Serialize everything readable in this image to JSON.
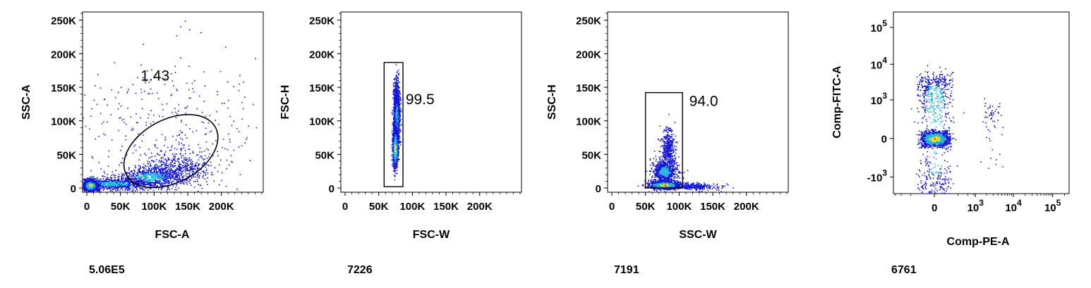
{
  "colors": {
    "low_density": "#1515d8",
    "mid_density": "#21b7e0",
    "high_density": "#f0e020",
    "peak_density": "#e03a1a",
    "axis": "#000000",
    "background": "#ffffff"
  },
  "chart_data": [
    {
      "type": "scatter",
      "subtype": "density-dot-plot",
      "xlabel": "FSC-A",
      "ylabel": "SSC-A",
      "xscale": "linear",
      "yscale": "linear",
      "xlim": [
        0,
        262144
      ],
      "ylim": [
        0,
        262144
      ],
      "x_ticks": [
        {
          "value": 0,
          "label": "0"
        },
        {
          "value": 50000,
          "label": "50K"
        },
        {
          "value": 100000,
          "label": "100K"
        },
        {
          "value": 150000,
          "label": "150K"
        },
        {
          "value": 200000,
          "label": "200K"
        }
      ],
      "y_ticks": [
        {
          "value": 0,
          "label": "0"
        },
        {
          "value": 50000,
          "label": "50K"
        },
        {
          "value": 100000,
          "label": "100K"
        },
        {
          "value": 150000,
          "label": "150K"
        },
        {
          "value": 200000,
          "label": "200K"
        },
        {
          "value": 250000,
          "label": "250K"
        }
      ],
      "gate": {
        "shape": "ellipse",
        "center": [
          125000,
          55000
        ],
        "rx": 75000,
        "ry": 47000,
        "rotation_deg": -28,
        "percent": "1.43"
      },
      "gate_label_position": [
        80000,
        160000
      ],
      "event_count": "5.06E5",
      "populations": [
        {
          "center": [
            5000,
            4000
          ],
          "spread": [
            5000,
            4000
          ],
          "n": 1400,
          "density": "high"
        },
        {
          "center": [
            40000,
            7000
          ],
          "spread": [
            30000,
            4500
          ],
          "n": 900,
          "density": "mid"
        },
        {
          "center": [
            95000,
            17000
          ],
          "spread": [
            25000,
            8000
          ],
          "n": 700,
          "density": "mid"
        },
        {
          "center": [
            135000,
            30000
          ],
          "spread": [
            25000,
            12000
          ],
          "n": 500,
          "density": "low"
        },
        {
          "center": [
            120000,
            80000
          ],
          "spread": [
            70000,
            60000
          ],
          "n": 400,
          "density": "low"
        }
      ]
    },
    {
      "type": "scatter",
      "subtype": "density-dot-plot",
      "xlabel": "FSC-W",
      "ylabel": "FSC-H",
      "xscale": "linear",
      "yscale": "linear",
      "xlim": [
        0,
        262144
      ],
      "ylim": [
        0,
        262144
      ],
      "x_ticks": [
        {
          "value": 0,
          "label": "0"
        },
        {
          "value": 50000,
          "label": "50K"
        },
        {
          "value": 100000,
          "label": "100K"
        },
        {
          "value": 150000,
          "label": "150K"
        },
        {
          "value": 200000,
          "label": "200K"
        }
      ],
      "y_ticks": [
        {
          "value": 0,
          "label": "0"
        },
        {
          "value": 50000,
          "label": "50K"
        },
        {
          "value": 100000,
          "label": "100K"
        },
        {
          "value": 150000,
          "label": "150K"
        },
        {
          "value": 200000,
          "label": "200K"
        },
        {
          "value": 250000,
          "label": "250K"
        }
      ],
      "gate": {
        "shape": "rectangle",
        "x": [
          58000,
          86000
        ],
        "y": [
          2000,
          187000
        ],
        "percent": "99.5"
      },
      "gate_label_position": [
        90000,
        125000
      ],
      "event_count": "7226",
      "populations": [
        {
          "center": [
            74000,
            60000
          ],
          "spread": [
            2000,
            15000
          ],
          "n": 900,
          "density": "high"
        },
        {
          "center": [
            76000,
            105000
          ],
          "spread": [
            2500,
            25000
          ],
          "n": 900,
          "density": "mid"
        },
        {
          "center": [
            76000,
            130000
          ],
          "spread": [
            2000,
            15000
          ],
          "n": 400,
          "density": "low"
        }
      ]
    },
    {
      "type": "scatter",
      "subtype": "density-dot-plot",
      "xlabel": "SSC-W",
      "ylabel": "SSC-H",
      "xscale": "linear",
      "yscale": "linear",
      "xlim": [
        0,
        262144
      ],
      "ylim": [
        0,
        262144
      ],
      "x_ticks": [
        {
          "value": 0,
          "label": "0"
        },
        {
          "value": 50000,
          "label": "50K"
        },
        {
          "value": 100000,
          "label": "100K"
        },
        {
          "value": 150000,
          "label": "150K"
        },
        {
          "value": 200000,
          "label": "200K"
        }
      ],
      "y_ticks": [
        {
          "value": 0,
          "label": "0"
        },
        {
          "value": 50000,
          "label": "50K"
        },
        {
          "value": 100000,
          "label": "100K"
        },
        {
          "value": 150000,
          "label": "150K"
        },
        {
          "value": 200000,
          "label": "200K"
        },
        {
          "value": 250000,
          "label": "250K"
        }
      ],
      "gate": {
        "shape": "rectangle",
        "x": [
          50000,
          105000
        ],
        "y": [
          0,
          142000
        ],
        "percent": "94.0"
      },
      "gate_label_position": [
        115000,
        122000
      ],
      "event_count": "7191",
      "populations": [
        {
          "center": [
            78000,
            5000
          ],
          "spread": [
            12000,
            3000
          ],
          "n": 800,
          "density": "high"
        },
        {
          "center": [
            78000,
            25000
          ],
          "spread": [
            9000,
            9000
          ],
          "n": 800,
          "density": "mid"
        },
        {
          "center": [
            83000,
            60000
          ],
          "spread": [
            5000,
            15000
          ],
          "n": 400,
          "density": "low"
        },
        {
          "center": [
            120000,
            3000
          ],
          "spread": [
            20000,
            2500
          ],
          "n": 300,
          "density": "low"
        }
      ]
    },
    {
      "type": "scatter",
      "subtype": "density-dot-plot",
      "xlabel": "Comp-PE-A",
      "ylabel": "Comp-FITC-A",
      "xscale": "biexponential",
      "yscale": "biexponential",
      "x_ticks": [
        {
          "value": 0,
          "label": "0"
        },
        {
          "value": 1000,
          "base": "10",
          "exp": "3"
        },
        {
          "value": 10000,
          "base": "10",
          "exp": "4"
        },
        {
          "value": 100000,
          "base": "10",
          "exp": "5"
        }
      ],
      "y_ticks": [
        {
          "value": -1000,
          "base": "-10",
          "exp": "3"
        },
        {
          "value": 0,
          "label": "0"
        },
        {
          "value": 1000,
          "base": "10",
          "exp": "3"
        },
        {
          "value": 10000,
          "base": "10",
          "exp": "4"
        },
        {
          "value": 100000,
          "base": "10",
          "exp": "5"
        }
      ],
      "event_count": "6761",
      "populations": [
        {
          "center": [
            0,
            0
          ],
          "spread": [
            60,
            30
          ],
          "n": 1200,
          "density": "high"
        },
        {
          "center": [
            0,
            900
          ],
          "spread": [
            80,
            2200
          ],
          "n": 700,
          "density": "mid"
        },
        {
          "center": [
            2500,
            300
          ],
          "spread": [
            1000,
            350
          ],
          "n": 60,
          "density": "low"
        }
      ]
    }
  ]
}
